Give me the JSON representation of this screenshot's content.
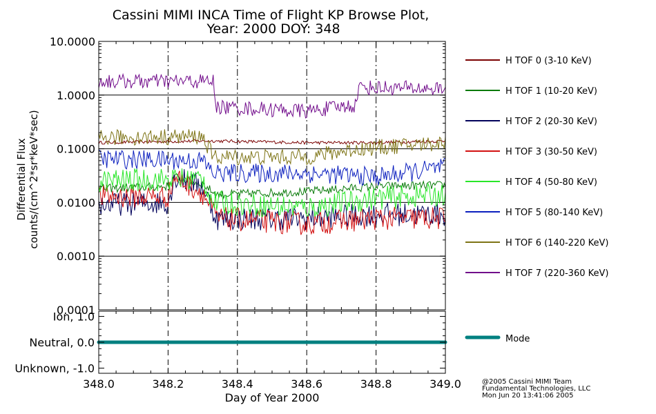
{
  "chart_data": [
    {
      "type": "line",
      "title": "Cassini MIMI INCA Time of Flight KP Browse Plot,",
      "subtitle": "Year: 2000 DOY: 348",
      "ylabel_line1": "Differential Flux",
      "ylabel_line2": "counts/(cm^2*sr*keV*sec)",
      "y_scale": "log",
      "ylim": [
        0.0001,
        10.0
      ],
      "y_ticks": [
        10.0,
        1.0,
        0.1,
        0.01,
        0.001,
        0.0001
      ],
      "y_tick_labels": [
        "10.0000",
        "1.0000",
        "0.1000",
        "0.0100",
        "0.0010",
        "0.0001"
      ],
      "xlim": [
        348.0,
        349.0
      ],
      "x_ticks": [
        348.0,
        348.2,
        348.4,
        348.6,
        348.8,
        349.0
      ],
      "grid": "dash-dot vertical lines at 348.2, 348.4, 348.6, 348.8; solid horizontal lines at decades",
      "legend_position": "right",
      "series": [
        {
          "name": "H TOF 0 (3-10 KeV)",
          "color": "#7a0000",
          "noise": 0.03,
          "points": [
            [
              348.0,
              0.13
            ],
            [
              348.3,
              0.14
            ],
            [
              348.33,
              0.14
            ],
            [
              348.6,
              0.13
            ],
            [
              348.8,
              0.13
            ],
            [
              349.0,
              0.14
            ]
          ]
        },
        {
          "name": "H TOF 1 (10-20 KeV)",
          "color": "#0a7a0a",
          "noise": 0.08,
          "points": [
            [
              348.0,
              0.018
            ],
            [
              348.2,
              0.02
            ],
            [
              348.22,
              0.03
            ],
            [
              348.3,
              0.022
            ],
            [
              348.34,
              0.014
            ],
            [
              348.6,
              0.016
            ],
            [
              348.8,
              0.02
            ],
            [
              349.0,
              0.021
            ]
          ]
        },
        {
          "name": "H TOF 2 (20-30 KeV)",
          "color": "#00005a",
          "noise": 0.22,
          "points": [
            [
              348.0,
              0.009
            ],
            [
              348.2,
              0.01
            ],
            [
              348.22,
              0.03
            ],
            [
              348.3,
              0.02
            ],
            [
              348.34,
              0.005
            ],
            [
              348.6,
              0.005
            ],
            [
              348.8,
              0.006
            ],
            [
              349.0,
              0.006
            ]
          ]
        },
        {
          "name": "H TOF 3 (30-50 KeV)",
          "color": "#d21010",
          "noise": 0.22,
          "points": [
            [
              348.0,
              0.013
            ],
            [
              348.2,
              0.013
            ],
            [
              348.22,
              0.03
            ],
            [
              348.3,
              0.015
            ],
            [
              348.34,
              0.005
            ],
            [
              348.6,
              0.004
            ],
            [
              348.8,
              0.005
            ],
            [
              349.0,
              0.005
            ]
          ]
        },
        {
          "name": "H TOF 4 (50-80 KeV)",
          "color": "#28e628",
          "noise": 0.22,
          "points": [
            [
              348.0,
              0.025
            ],
            [
              348.3,
              0.028
            ],
            [
              348.33,
              0.01
            ],
            [
              348.6,
              0.008
            ],
            [
              348.8,
              0.012
            ],
            [
              349.0,
              0.014
            ]
          ]
        },
        {
          "name": "H TOF 5 (80-140 KeV)",
          "color": "#0a1ebe",
          "noise": 0.18,
          "points": [
            [
              348.0,
              0.065
            ],
            [
              348.3,
              0.06
            ],
            [
              348.33,
              0.035
            ],
            [
              348.6,
              0.035
            ],
            [
              348.8,
              0.03
            ],
            [
              349.0,
              0.045
            ]
          ]
        },
        {
          "name": "H TOF 6 (140-220 KeV)",
          "color": "#7d7314",
          "noise": 0.15,
          "points": [
            [
              348.0,
              0.16
            ],
            [
              348.3,
              0.17
            ],
            [
              348.33,
              0.07
            ],
            [
              348.6,
              0.07
            ],
            [
              348.75,
              0.1
            ],
            [
              349.0,
              0.13
            ]
          ]
        },
        {
          "name": "H TOF 7 (220-360 KeV)",
          "color": "#700a8a",
          "noise": 0.14,
          "points": [
            [
              348.0,
              1.8
            ],
            [
              348.33,
              1.8
            ],
            [
              348.34,
              0.6
            ],
            [
              348.6,
              0.5
            ],
            [
              348.74,
              0.65
            ],
            [
              348.75,
              1.4
            ],
            [
              349.0,
              1.3
            ]
          ]
        }
      ]
    },
    {
      "type": "line",
      "ytick_labels": [
        "Ion, 1.0",
        "Neutral, 0.0",
        "Unknown, -1.0"
      ],
      "y_ticks": [
        1.0,
        0.0,
        -1.0
      ],
      "ylim": [
        -1.2,
        1.2
      ],
      "xlim": [
        348.0,
        349.0
      ],
      "x_ticks": [
        348.0,
        348.2,
        348.4,
        348.6,
        348.8,
        349.0
      ],
      "x_tick_labels": [
        "348.0",
        "348.2",
        "348.4",
        "348.6",
        "348.8",
        "349.0"
      ],
      "xlabel": "Day of Year 2000",
      "series": [
        {
          "name": "Mode",
          "color": "#008080",
          "points": [
            [
              348.0,
              0.0
            ],
            [
              349.0,
              0.0
            ]
          ]
        }
      ]
    }
  ],
  "footer": {
    "line1": "@2005 Cassini MIMI Team",
    "line2": "Fundamental Technologies, LLC",
    "line3": "Mon Jun 20 13:41:06 2005"
  }
}
